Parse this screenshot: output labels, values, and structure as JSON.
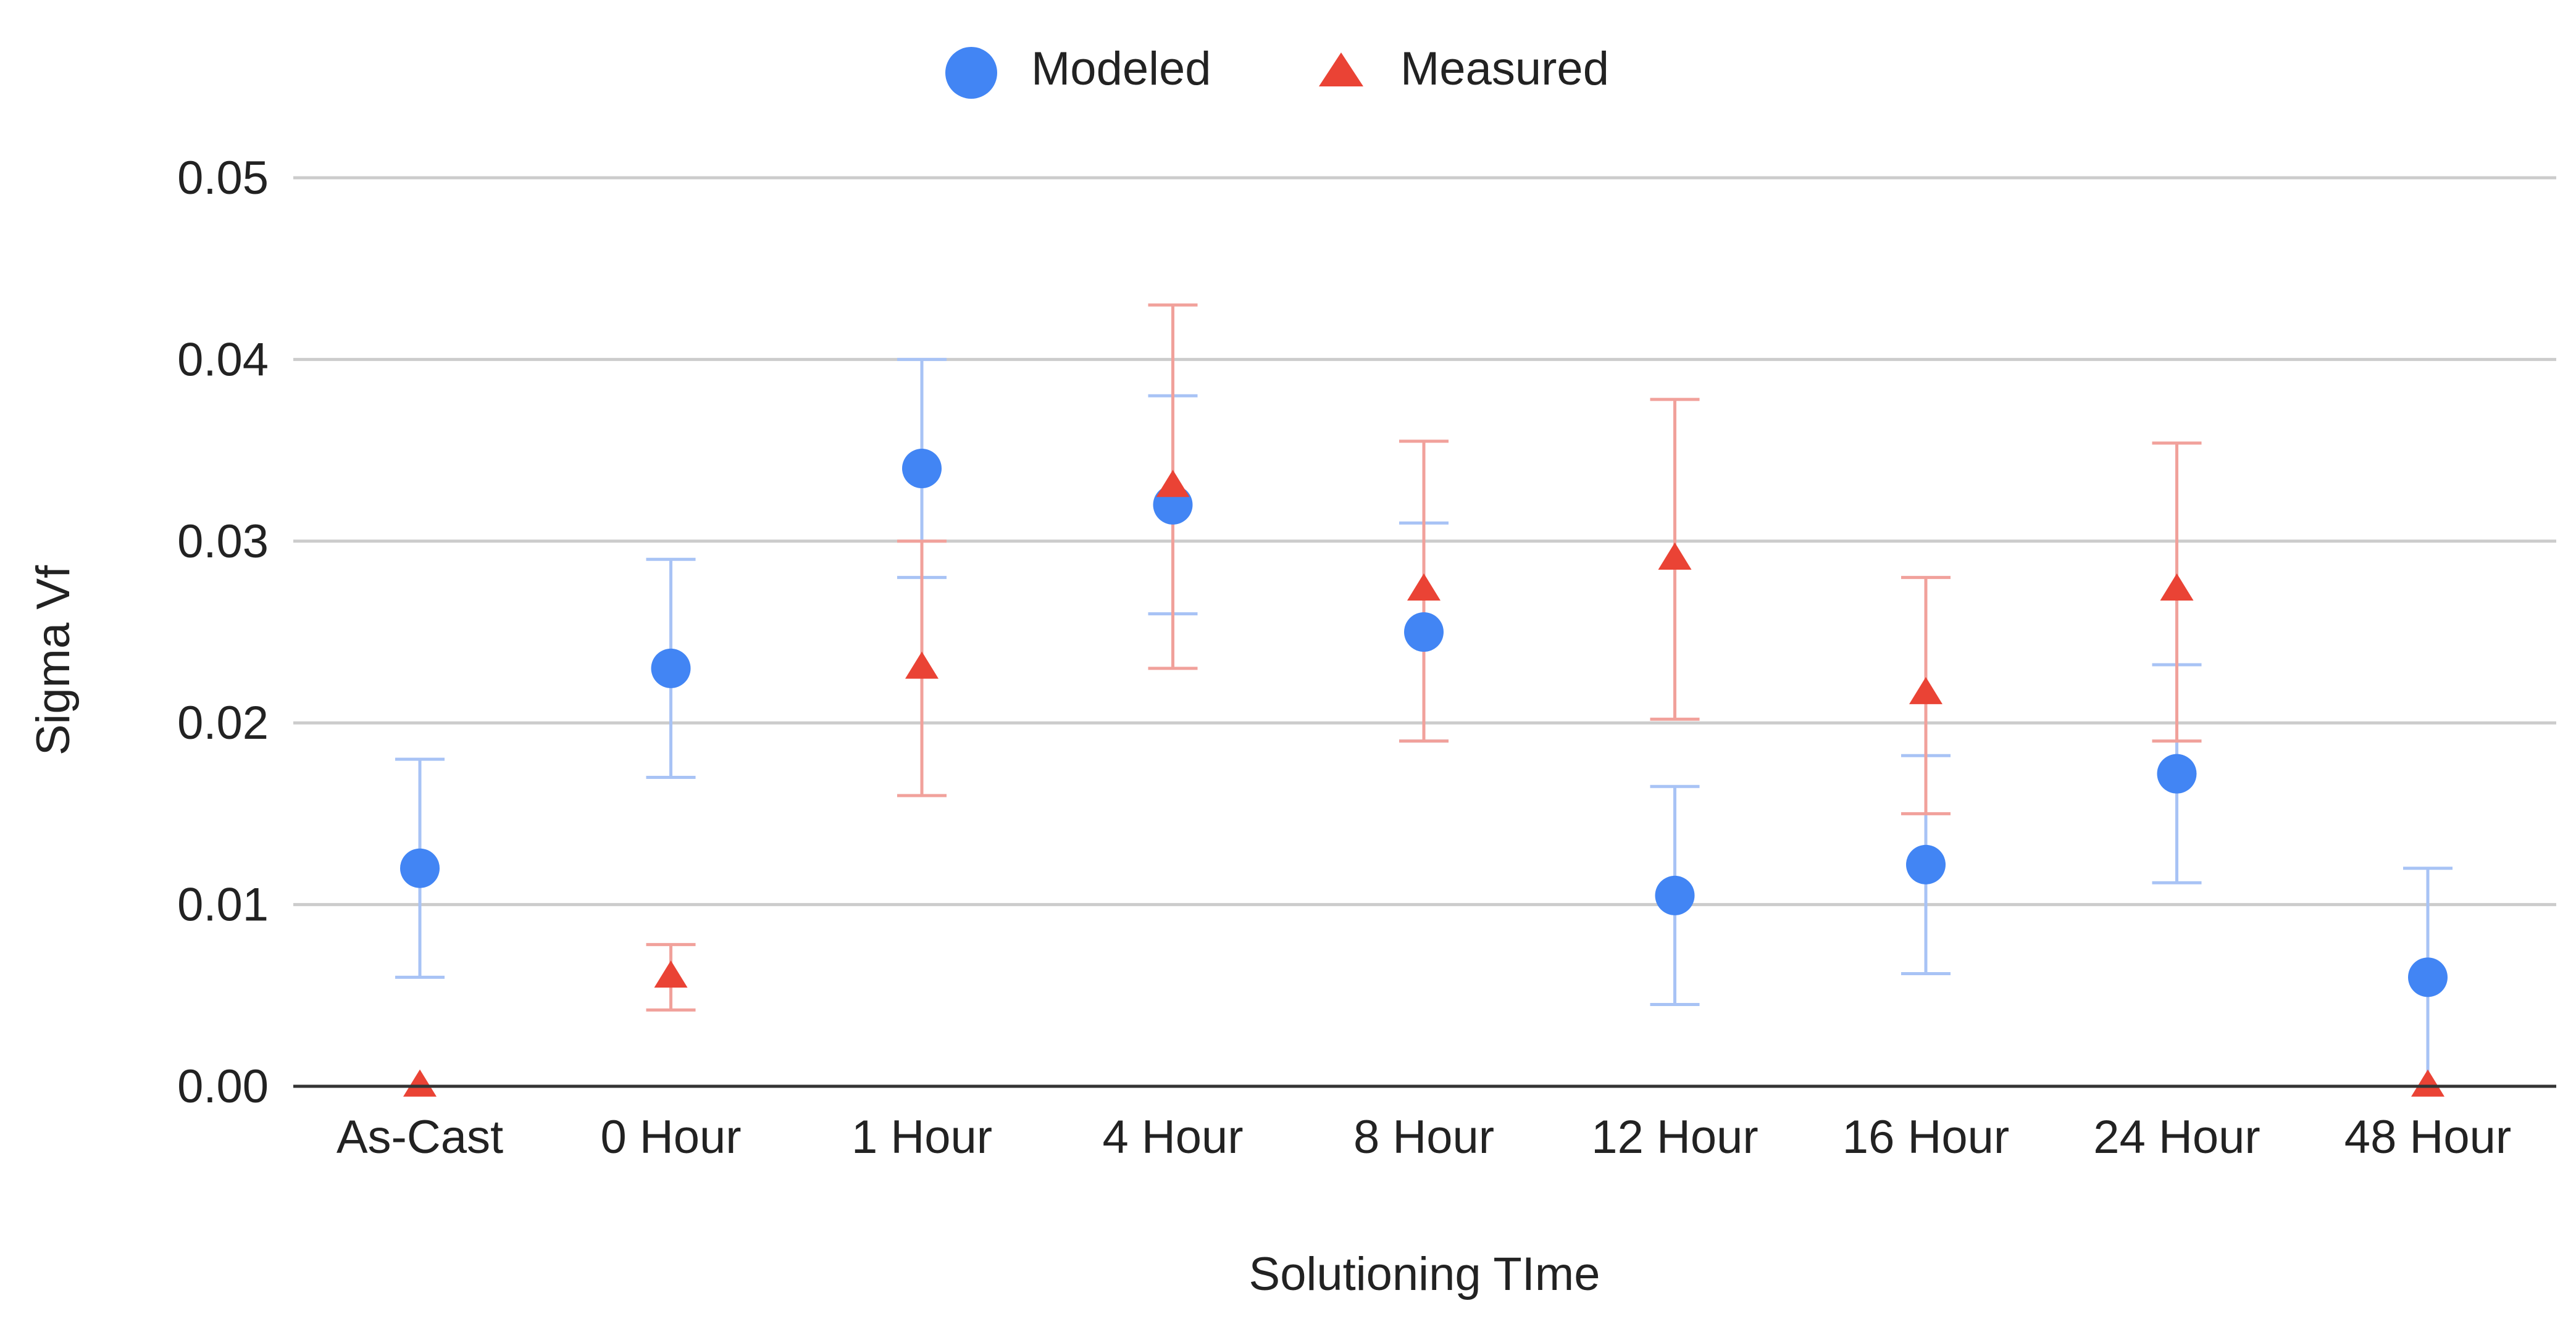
{
  "chart_data": {
    "type": "scatter",
    "title": "",
    "xlabel": "Solutioning TIme",
    "ylabel": "Sigma Vf",
    "categories": [
      "As-Cast",
      "0 Hour",
      "1 Hour",
      "4 Hour",
      "8 Hour",
      "12 Hour",
      "16 Hour",
      "24 Hour",
      "48 Hour"
    ],
    "ylim": [
      0,
      0.05
    ],
    "yticks": [
      0,
      0.01,
      0.02,
      0.03,
      0.04,
      0.05
    ],
    "ytick_labels": [
      "0.00",
      "0.01",
      "0.02",
      "0.03",
      "0.04",
      "0.05"
    ],
    "grid": true,
    "legend_position": "top-center",
    "series": [
      {
        "name": "Modeled",
        "marker": "circle",
        "color": "#4285f4",
        "error_color": "#a8c3f5",
        "values": [
          0.012,
          0.023,
          0.034,
          0.032,
          0.025,
          0.0105,
          0.0122,
          0.0172,
          0.006
        ],
        "error_low": [
          0.006,
          0.017,
          0.028,
          0.026,
          0.019,
          0.0045,
          0.0062,
          0.0112,
          0.0
        ],
        "error_high": [
          0.018,
          0.029,
          0.04,
          0.038,
          0.031,
          0.0165,
          0.0182,
          0.0232,
          0.012
        ]
      },
      {
        "name": "Measured",
        "marker": "triangle",
        "color": "#ea4335",
        "error_color": "#f1a19b",
        "values": [
          0.0,
          0.006,
          0.023,
          0.033,
          0.0273,
          0.029,
          0.0216,
          0.0273,
          0.0
        ],
        "error_low": [
          null,
          0.0042,
          0.016,
          0.023,
          0.019,
          0.0202,
          0.015,
          0.019,
          null
        ],
        "error_high": [
          null,
          0.0078,
          0.03,
          0.043,
          0.0355,
          0.0378,
          0.028,
          0.0354,
          null
        ]
      }
    ]
  }
}
